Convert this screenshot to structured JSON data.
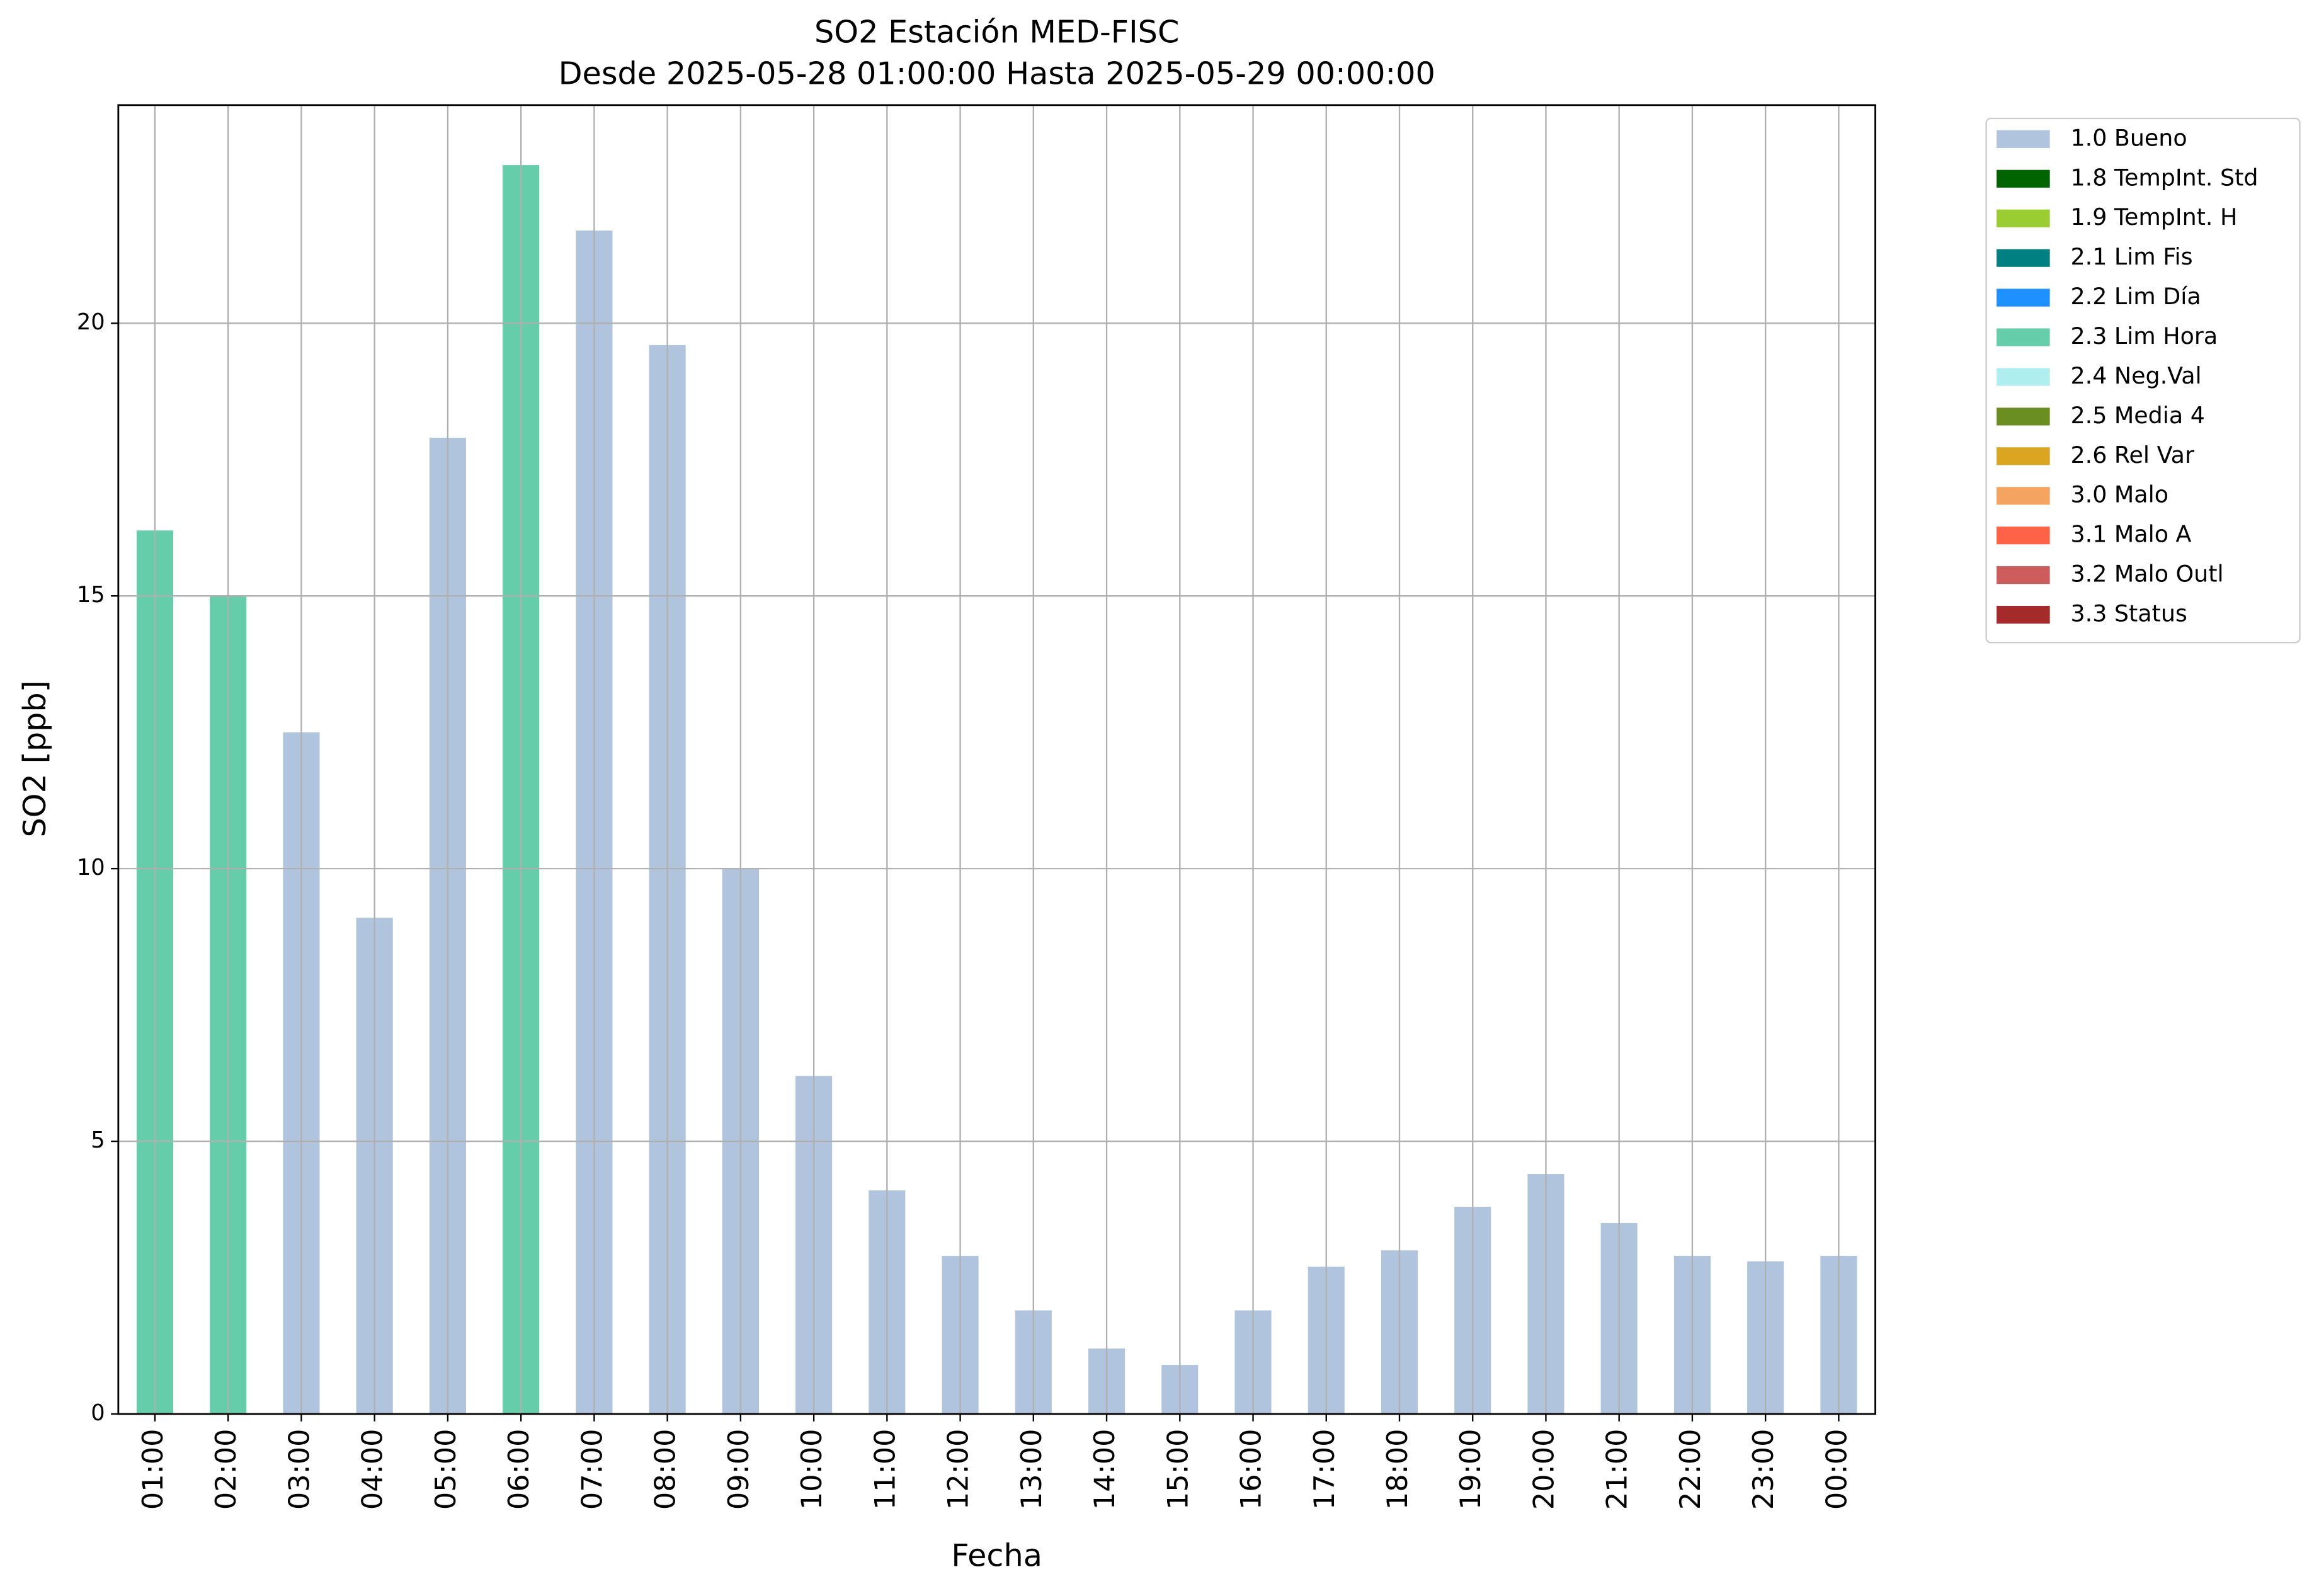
{
  "chart_data": {
    "type": "bar",
    "title": "SO2 Estación MED-FISC",
    "subtitle": "Desde 2025-05-28 01:00:00 Hasta 2025-05-29 00:00:00",
    "x_label": "Fecha",
    "y_label": "SO2 [ppb]",
    "categories": [
      "01:00",
      "02:00",
      "03:00",
      "04:00",
      "05:00",
      "06:00",
      "07:00",
      "08:00",
      "09:00",
      "10:00",
      "11:00",
      "12:00",
      "13:00",
      "14:00",
      "15:00",
      "16:00",
      "17:00",
      "18:00",
      "19:00",
      "20:00",
      "21:00",
      "22:00",
      "23:00",
      "00:00"
    ],
    "series": [
      {
        "name": "1.0 Bueno",
        "color": "#b0c4de",
        "values": [
          null,
          null,
          12.5,
          9.1,
          17.9,
          null,
          21.7,
          19.6,
          10.0,
          6.2,
          4.1,
          2.9,
          1.9,
          1.2,
          0.9,
          1.9,
          2.7,
          3.0,
          3.8,
          4.4,
          3.5,
          2.9,
          2.8,
          2.9
        ]
      },
      {
        "name": "1.8 TempInt. Std",
        "color": "#006400",
        "values": [
          null,
          null,
          null,
          null,
          null,
          null,
          null,
          null,
          null,
          null,
          null,
          null,
          null,
          null,
          null,
          null,
          null,
          null,
          null,
          null,
          null,
          null,
          null,
          null
        ]
      },
      {
        "name": "1.9 TempInt. H",
        "color": "#9acd32",
        "values": [
          null,
          null,
          null,
          null,
          null,
          null,
          null,
          null,
          null,
          null,
          null,
          null,
          null,
          null,
          null,
          null,
          null,
          null,
          null,
          null,
          null,
          null,
          null,
          null
        ]
      },
      {
        "name": "2.1 Lim Fis",
        "color": "#008080",
        "values": [
          null,
          null,
          null,
          null,
          null,
          null,
          null,
          null,
          null,
          null,
          null,
          null,
          null,
          null,
          null,
          null,
          null,
          null,
          null,
          null,
          null,
          null,
          null,
          null
        ]
      },
      {
        "name": "2.2 Lim Día",
        "color": "#1e90ff",
        "values": [
          null,
          null,
          null,
          null,
          null,
          null,
          null,
          null,
          null,
          null,
          null,
          null,
          null,
          null,
          null,
          null,
          null,
          null,
          null,
          null,
          null,
          null,
          null,
          null
        ]
      },
      {
        "name": "2.3 Lim Hora",
        "color": "#66cdaa",
        "values": [
          16.2,
          15.0,
          null,
          null,
          null,
          22.9,
          null,
          null,
          null,
          null,
          null,
          null,
          null,
          null,
          null,
          null,
          null,
          null,
          null,
          null,
          null,
          null,
          null,
          null
        ]
      },
      {
        "name": "2.4 Neg.Val",
        "color": "#afeeee",
        "values": [
          null,
          null,
          null,
          null,
          null,
          null,
          null,
          null,
          null,
          null,
          null,
          null,
          null,
          null,
          null,
          null,
          null,
          null,
          null,
          null,
          null,
          null,
          null,
          null
        ]
      },
      {
        "name": "2.5 Media 4",
        "color": "#6b8e23",
        "values": [
          null,
          null,
          null,
          null,
          null,
          null,
          null,
          null,
          null,
          null,
          null,
          null,
          null,
          null,
          null,
          null,
          null,
          null,
          null,
          null,
          null,
          null,
          null,
          null
        ]
      },
      {
        "name": "2.6 Rel Var",
        "color": "#daa520",
        "values": [
          null,
          null,
          null,
          null,
          null,
          null,
          null,
          null,
          null,
          null,
          null,
          null,
          null,
          null,
          null,
          null,
          null,
          null,
          null,
          null,
          null,
          null,
          null,
          null
        ]
      },
      {
        "name": "3.0 Malo",
        "color": "#f4a460",
        "values": [
          null,
          null,
          null,
          null,
          null,
          null,
          null,
          null,
          null,
          null,
          null,
          null,
          null,
          null,
          null,
          null,
          null,
          null,
          null,
          null,
          null,
          null,
          null,
          null
        ]
      },
      {
        "name": "3.1 Malo A",
        "color": "#ff6347",
        "values": [
          null,
          null,
          null,
          null,
          null,
          null,
          null,
          null,
          null,
          null,
          null,
          null,
          null,
          null,
          null,
          null,
          null,
          null,
          null,
          null,
          null,
          null,
          null,
          null
        ]
      },
      {
        "name": "3.2 Malo Outl",
        "color": "#cd5c5c",
        "values": [
          null,
          null,
          null,
          null,
          null,
          null,
          null,
          null,
          null,
          null,
          null,
          null,
          null,
          null,
          null,
          null,
          null,
          null,
          null,
          null,
          null,
          null,
          null,
          null
        ]
      },
      {
        "name": "3.3 Status",
        "color": "#a52a2a",
        "values": [
          null,
          null,
          null,
          null,
          null,
          null,
          null,
          null,
          null,
          null,
          null,
          null,
          null,
          null,
          null,
          null,
          null,
          null,
          null,
          null,
          null,
          null,
          null,
          null
        ]
      }
    ],
    "ylim": [
      0,
      24
    ],
    "yticks": [
      0,
      5,
      10,
      15,
      20
    ],
    "grid": true,
    "legend": "outside upper right"
  }
}
